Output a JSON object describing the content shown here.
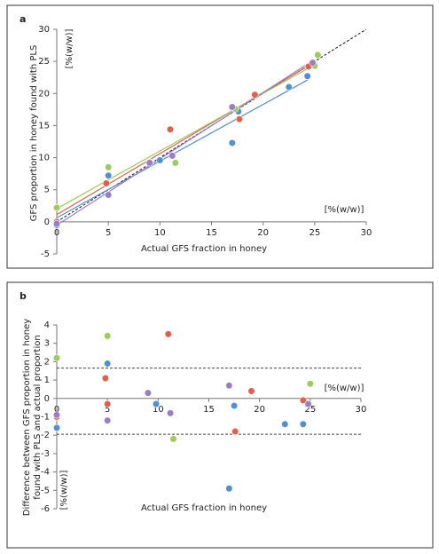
{
  "chart_data": [
    {
      "type": "scatter",
      "panel": "a",
      "ylabel": "GFS proportion in honey found with PLS",
      "y_unit": "[%(w/w)]",
      "xlabel": "Actual GFS fraction in honey",
      "x_unit": "[%(w/w)]",
      "xlim": [
        0,
        30
      ],
      "xticks": [
        0,
        5,
        10,
        15,
        20,
        25,
        30
      ],
      "ylim": [
        -5,
        30
      ],
      "yticks": [
        -5,
        0,
        5,
        10,
        15,
        20,
        25,
        30
      ],
      "reference_line": {
        "x": [
          0,
          30
        ],
        "y": [
          0,
          30
        ]
      },
      "fit_lines": true,
      "series": [
        {
          "color": "#4f8fd6",
          "x": [
            0,
            5,
            10,
            17,
            17.6,
            22.5,
            24.3
          ],
          "values": [
            -0.5,
            7.2,
            9.6,
            12.3,
            17.2,
            21,
            22.7
          ]
        },
        {
          "color": "#e0604a",
          "x": [
            0,
            4.8,
            9,
            11,
            17.7,
            19.2,
            24.4
          ],
          "values": [
            0,
            6,
            9.3,
            14.4,
            16,
            19.8,
            24.2
          ]
        },
        {
          "color": "#9ccc5a",
          "x": [
            0,
            5,
            11.5,
            17.3,
            25,
            25.3
          ],
          "values": [
            2.2,
            8.5,
            9.2,
            17.6,
            24.3,
            26
          ]
        },
        {
          "color": "#9b7cc8",
          "x": [
            0,
            5,
            9,
            11.2,
            17,
            24.8
          ],
          "values": [
            -0.3,
            4.2,
            9.2,
            10.3,
            17.9,
            24.8
          ]
        }
      ]
    },
    {
      "type": "scatter",
      "panel": "b",
      "ylabel": [
        "Difference between GFS proportion in honey",
        "found with PLS and actual proportion"
      ],
      "y_unit": "[%(w/w)]",
      "xlabel": "Actual GFS fraction in honey",
      "x_unit": "[%(w/w)]",
      "xlim": [
        0,
        30
      ],
      "xticks": [
        0,
        5,
        10,
        15,
        20,
        25,
        30
      ],
      "ylim": [
        -6,
        4
      ],
      "yticks": [
        -6,
        -5,
        -4,
        -3,
        -2,
        -1,
        0,
        1,
        2,
        3,
        4
      ],
      "hlines": [
        1.65,
        -1.95
      ],
      "series": [
        {
          "color": "#4f8fd6",
          "x": [
            0,
            5,
            9.8,
            17,
            17.5,
            22.5,
            24.3
          ],
          "values": [
            -1.6,
            1.9,
            -0.3,
            -4.9,
            -0.4,
            -1.4,
            -1.4
          ]
        },
        {
          "color": "#e0604a",
          "x": [
            0,
            4.8,
            5,
            11,
            17.6,
            19.2,
            24.3
          ],
          "values": [
            -1,
            1.1,
            -0.3,
            3.5,
            -1.8,
            0.4,
            -0.1
          ]
        },
        {
          "color": "#9ccc5a",
          "x": [
            0,
            5,
            11.5,
            25
          ],
          "values": [
            2.2,
            3.4,
            -2.2,
            0.8
          ]
        },
        {
          "color": "#9b7cc8",
          "x": [
            0,
            5,
            9,
            11.2,
            17,
            24.8
          ],
          "values": [
            -0.9,
            -1.2,
            0.3,
            -0.8,
            0.7,
            -0.3
          ]
        }
      ]
    }
  ]
}
